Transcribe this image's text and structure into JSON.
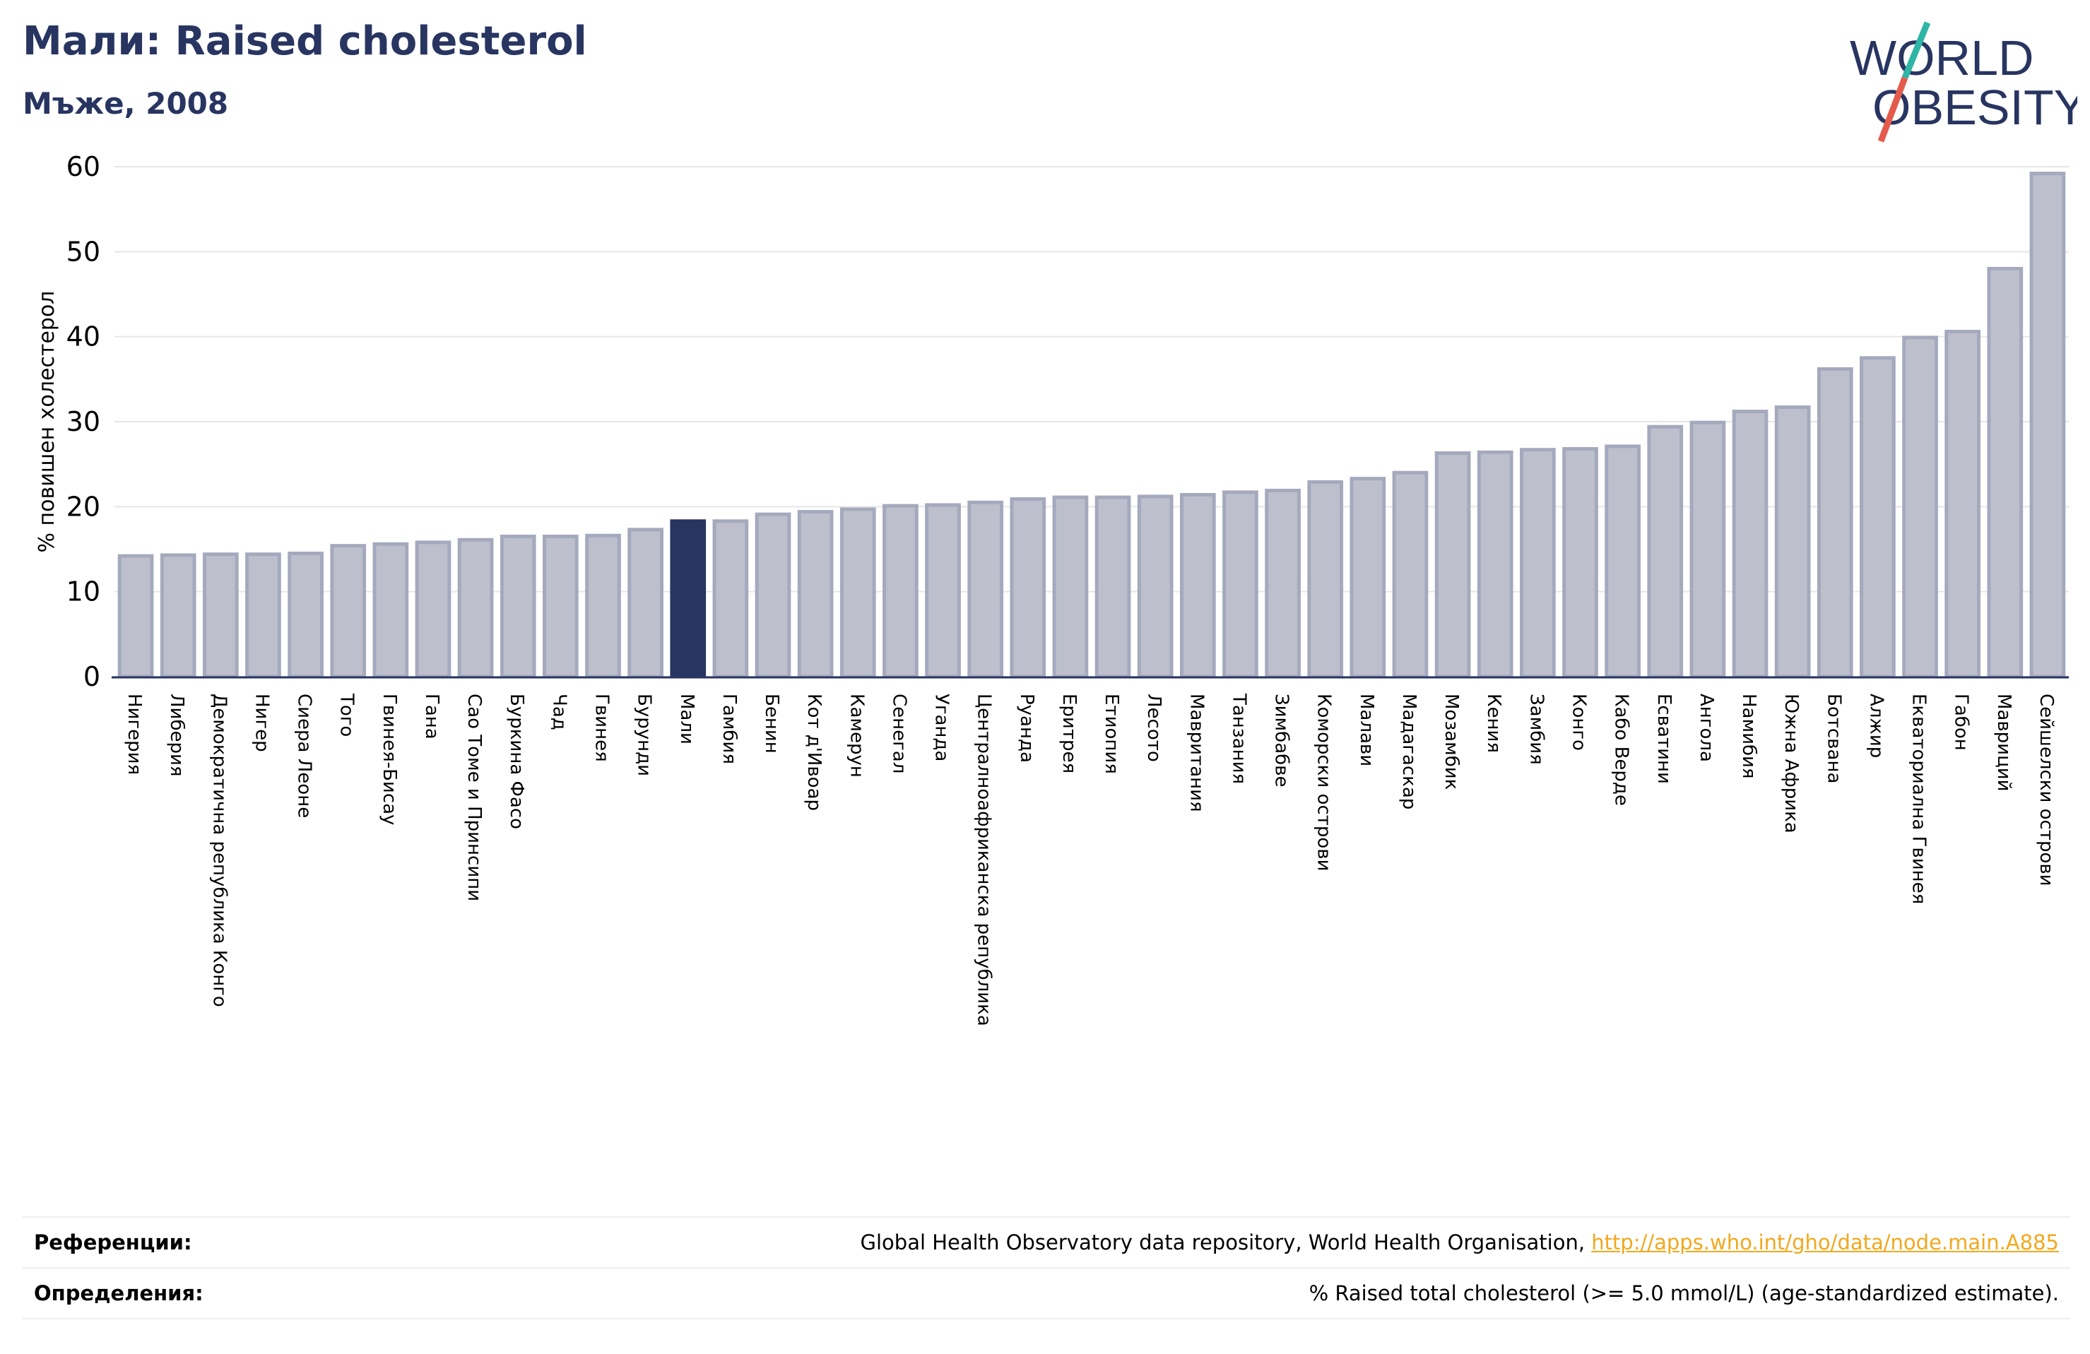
{
  "header": {
    "title": "Мали: Raised cholesterol",
    "subtitle": "Мъже, 2008"
  },
  "logo": {
    "line1": "WORLD",
    "line2": "OBESITY"
  },
  "chart_data": {
    "type": "bar",
    "ylabel": "% повишен холестерол",
    "ylim": [
      0,
      60
    ],
    "yticks": [
      0,
      10,
      20,
      30,
      40,
      50,
      60
    ],
    "grid": true,
    "highlight": "Мали",
    "colors": {
      "bar": "#bdc0cc",
      "bar_edge": "#a5a9bd",
      "highlight": "#283561",
      "grid": "#e6e6e6"
    },
    "categories": [
      "Нигерия",
      "Либерия",
      "Демократична република Конго",
      "Нигер",
      "Сиера Леоне",
      "Того",
      "Гвинея-Бисау",
      "Гана",
      "Сао Томе и Принсипи",
      "Буркина Фасо",
      "Чад",
      "Гвинея",
      "Бурунди",
      "Мали",
      "Гамбия",
      "Бенин",
      "Кот д'Ивоар",
      "Камерун",
      "Сенегал",
      "Уганда",
      "Централноафриканска република",
      "Руанда",
      "Еритрея",
      "Етиопия",
      "Лесото",
      "Мавритания",
      "Танзания",
      "Зимбабве",
      "Коморски острови",
      "Малави",
      "Мадагаскар",
      "Мозамбик",
      "Кения",
      "Замбия",
      "Конго",
      "Кабо Верде",
      "Есватини",
      "Ангола",
      "Намибия",
      "Южна Африка",
      "Ботсвана",
      "Алжир",
      "Екваториална Гвинея",
      "Габон",
      "Мавриций",
      "Сейшелски острови"
    ],
    "values": [
      14.2,
      14.3,
      14.4,
      14.4,
      14.5,
      15.4,
      15.6,
      15.8,
      16.1,
      16.5,
      16.5,
      16.6,
      17.3,
      18.3,
      18.3,
      19.1,
      19.4,
      19.7,
      20.1,
      20.2,
      20.5,
      20.9,
      21.1,
      21.1,
      21.2,
      21.4,
      21.7,
      21.9,
      22.9,
      23.3,
      24.0,
      26.3,
      26.4,
      26.7,
      26.8,
      27.1,
      29.4,
      29.9,
      31.2,
      31.7,
      36.2,
      37.5,
      39.9,
      40.6,
      48.0,
      59.2
    ]
  },
  "references": {
    "sources_label": "Референции:",
    "sources_text": "Global Health Observatory data repository, World Health Organisation, ",
    "sources_link": "http://apps.who.int/gho/data/node.main.A885",
    "definitions_label": "Определения:",
    "definitions_text": "% Raised total cholesterol (>= 5.0 mmol/L) (age-standardized estimate)."
  }
}
